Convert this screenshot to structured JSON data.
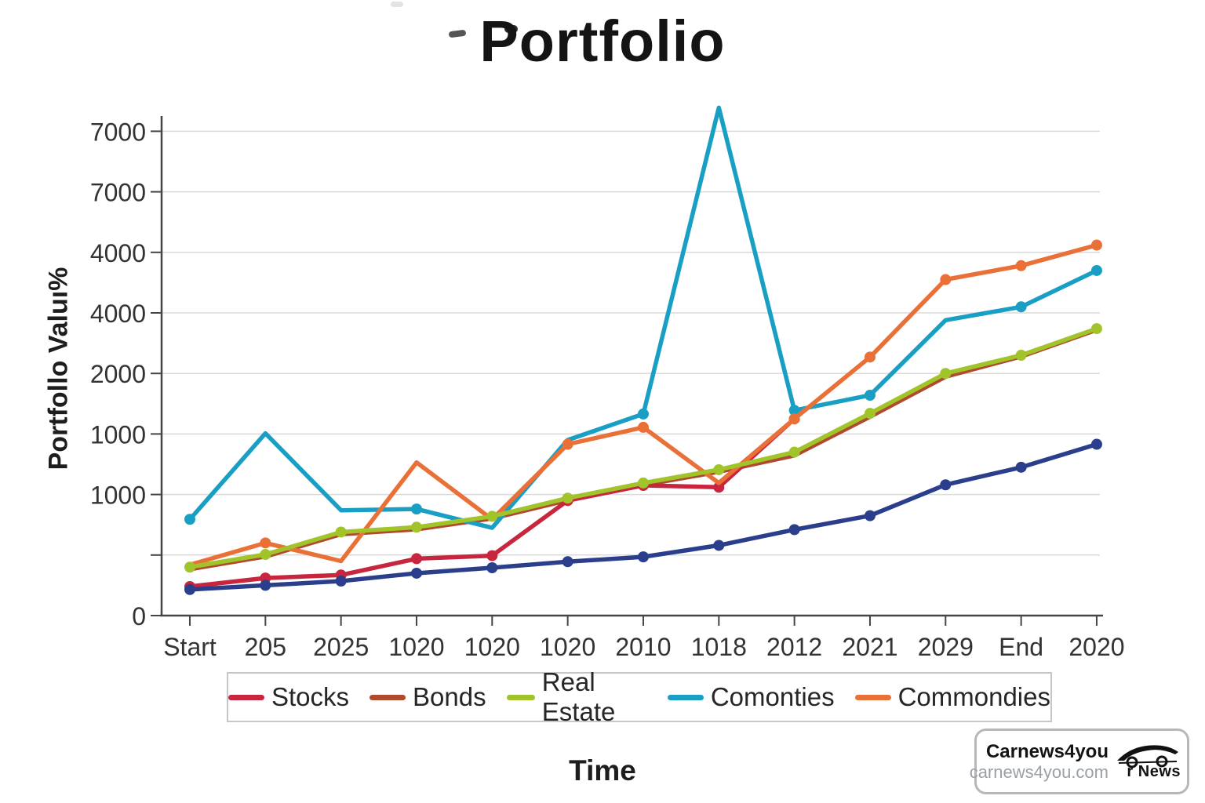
{
  "title": "Portfolio",
  "axes": {
    "x_title": "Time",
    "y_title": "Portfollo Valuı%"
  },
  "chart_data": {
    "type": "line",
    "title": "Portfolio",
    "xlabel": "Time",
    "ylabel": "Portfollo Valuı%",
    "grid": "horizontal-only",
    "legend_position": "bottom",
    "value_note": "y values estimated in units where one gridline step ≈ 1000; axis tick labels are garbled duplicates as rendered",
    "categories": [
      "Start",
      "205",
      "2025",
      "1020",
      "1020",
      "1020",
      "2010",
      "1018",
      "2012",
      "2021",
      "2029",
      "End",
      "2020"
    ],
    "y_axis": {
      "tick_labels_bottom_to_top": [
        "0",
        "",
        "1000",
        "1000",
        "2000",
        "4000",
        "4000",
        "7000",
        "7000"
      ]
    },
    "series": [
      {
        "name": "Stocks",
        "color": "#c8253e",
        "in_legend": true,
        "values": [
          480,
          620,
          670,
          940,
          990,
          1900,
          2150,
          2120,
          3250,
          null,
          null,
          null,
          null
        ],
        "markers": [
          1,
          1,
          1,
          1,
          1,
          1,
          1,
          1,
          1,
          0,
          0,
          0,
          0
        ]
      },
      {
        "name": "Bonds",
        "color": "#b04a2f",
        "in_legend": true,
        "values": [
          765,
          975,
          1345,
          1425,
          1605,
          1905,
          2155,
          2375,
          2645,
          3285,
          3945,
          4280,
          4720
        ],
        "markers": [
          0,
          0,
          0,
          0,
          0,
          0,
          0,
          0,
          0,
          0,
          0,
          0,
          0
        ]
      },
      {
        "name": "Real Estate",
        "color": "#a0c42a",
        "in_legend": true,
        "values": [
          800,
          1010,
          1380,
          1460,
          1640,
          1940,
          2190,
          2410,
          2700,
          3340,
          4000,
          4300,
          4740
        ],
        "markers": [
          1,
          1,
          1,
          1,
          1,
          1,
          1,
          1,
          1,
          1,
          1,
          1,
          1
        ]
      },
      {
        "name": "Comonties",
        "color": "#1a9fc4",
        "in_legend": true,
        "values": [
          1590,
          3010,
          1740,
          1760,
          1450,
          2900,
          3330,
          8390,
          3390,
          3640,
          4880,
          5100,
          5700
        ],
        "markers": [
          1,
          0,
          0,
          1,
          0,
          0,
          1,
          0,
          1,
          1,
          0,
          1,
          1
        ]
      },
      {
        "name": "Commondies",
        "color": "#e97138",
        "in_legend": true,
        "values": [
          840,
          1200,
          900,
          2530,
          1590,
          2830,
          3110,
          2190,
          3250,
          4270,
          5550,
          5780,
          6120
        ],
        "markers": [
          0,
          1,
          0,
          0,
          0,
          1,
          1,
          0,
          1,
          1,
          1,
          1,
          1
        ]
      },
      {
        "name": "(unlabeled navy series)",
        "color": "#2b3e8c",
        "in_legend": false,
        "values": [
          430,
          500,
          570,
          700,
          790,
          890,
          970,
          1160,
          1420,
          1650,
          2160,
          2450,
          2830
        ],
        "markers": [
          1,
          1,
          1,
          1,
          1,
          1,
          1,
          1,
          1,
          1,
          1,
          1,
          1
        ]
      }
    ]
  },
  "legend": {
    "items": [
      {
        "label": "Stocks",
        "color": "#c8253e"
      },
      {
        "label": "Bonds",
        "color": "#b04a2f"
      },
      {
        "label": "Real Estate",
        "color": "#a0c42a"
      },
      {
        "label": "Comonties",
        "color": "#1a9fc4"
      },
      {
        "label": "Commondies",
        "color": "#e97138"
      }
    ]
  },
  "watermark": {
    "brand": "Carnews4you",
    "url": "carnews4you.com",
    "logo_text": "r News"
  },
  "style": {
    "axis_color": "#454545",
    "gridline_color": "#dadada",
    "tick_text_color": "#333333"
  }
}
